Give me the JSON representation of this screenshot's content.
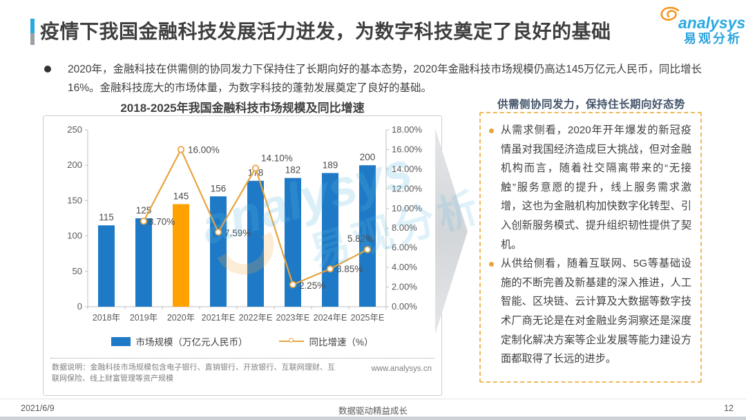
{
  "header": {
    "title": "疫情下我国金融科技发展活力迸发，为数字科技奠定了良好的基础",
    "logo": {
      "brand": "analysys",
      "brand_cn": "易观分析"
    }
  },
  "intro": {
    "text": "2020年，金融科技在供需侧的协同发力下保持住了长期向好的基本态势，2020年金融科技市场规模仍高达145万亿元人民币，同比增长16%。金融科技庞大的市场体量，为数字科技的蓬勃发展奠定了良好的基础。"
  },
  "chart": {
    "title": "2018-2025年我国金融科技市场规模及同比增速",
    "legend": [
      {
        "label": "市场规模（万亿元人民币）"
      },
      {
        "label": "同比增速（%）"
      }
    ],
    "note": "数据说明：金融科技市场规模包含电子银行、直销银行、开放银行、互联网理财、互联网保险、线上财富管理等资产规模",
    "website": "www.analysys.cn"
  },
  "chart_data": {
    "type": "bar",
    "title": "2018-2025年我国金融科技市场规模及同比增速",
    "categories": [
      "2018年",
      "2019年",
      "2020年",
      "2021年E",
      "2022年E",
      "2023年E",
      "2024年E",
      "2025年E"
    ],
    "series": [
      {
        "name": "市场规模（万亿元人民币）",
        "type": "bar",
        "axis": "left",
        "values": [
          115,
          125,
          145,
          156,
          178,
          182,
          189,
          200
        ]
      },
      {
        "name": "同比增速（%）",
        "type": "line",
        "axis": "right",
        "values": [
          null,
          8.7,
          16.0,
          7.59,
          14.1,
          2.25,
          3.85,
          5.82
        ],
        "point_labels": [
          "",
          "8.70%",
          "16.00%",
          "7.59%",
          "14.10%",
          "2.25%",
          "3.85%",
          "5.82%"
        ]
      }
    ],
    "left_axis": {
      "min": 0,
      "max": 250,
      "step": 50
    },
    "right_axis": {
      "min": 0,
      "max": 18,
      "step": 2,
      "unit": "%"
    },
    "highlight_index": 2,
    "grid": false,
    "legend_position": "bottom",
    "colors": {
      "bar": "#1E7AC6",
      "bar_highlight": "#FFA200",
      "line": "#E8A33D"
    }
  },
  "side_panel": {
    "title": "供需侧协同发力，保持住长期向好态势",
    "bullets": [
      "从需求侧看，2020年开年爆发的新冠疫情虽对我国经济造成巨大挑战，但对金融机构而言，随着社交隔离带来的“无接触”服务意愿的提升，线上服务需求激增，这也为金融机构加快数字化转型、引入创新服务模式、提升组织韧性提供了契机。",
      "从供给侧看，随着互联网、5G等基础设施的不断完善及新基建的深入推进，人工智能、区块链、云计算及大数据等数字技术厂商无论是在对金融业务洞察还是深度定制化解决方案等企业发展等能力建设方面都取得了长远的进步。"
    ]
  },
  "watermark": {
    "brand": "analysys",
    "brand_cn": "易观分析"
  },
  "footer": {
    "date": "2021/6/9",
    "center": "数据驱动精益成长",
    "page": "12"
  }
}
